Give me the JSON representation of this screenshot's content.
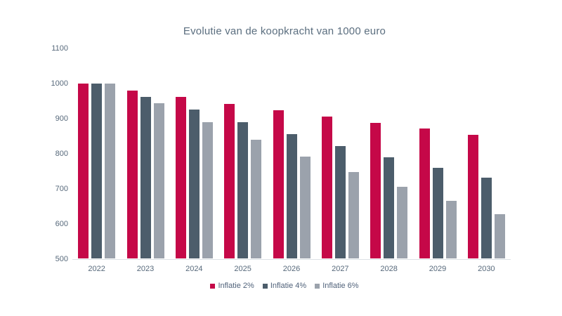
{
  "page": {
    "background_color": "#ffffff",
    "text_color": "#57697b",
    "axis_line_color": "#dce1e5"
  },
  "chart_data": {
    "type": "bar",
    "title": "Evolutie van de koopkracht van 1000 euro",
    "xlabel": "",
    "ylabel": "",
    "categories": [
      "2022",
      "2023",
      "2024",
      "2025",
      "2026",
      "2027",
      "2028",
      "2029",
      "2030"
    ],
    "series": [
      {
        "name": "Inflatie 2%",
        "color": "#c50848",
        "values": [
          1000,
          980,
          961,
          942,
          924,
          906,
          888,
          871,
          853
        ]
      },
      {
        "name": "Inflatie 4%",
        "color": "#4c5d6b",
        "values": [
          1000,
          962,
          925,
          889,
          855,
          822,
          790,
          760,
          731
        ]
      },
      {
        "name": "Inflatie 6%",
        "color": "#9ba2ac",
        "values": [
          1000,
          943,
          890,
          840,
          792,
          747,
          705,
          665,
          627
        ]
      }
    ],
    "y_axis": {
      "min": 500,
      "max": 1100,
      "step": 100,
      "ticks": [
        "500",
        "600",
        "700",
        "800",
        "900",
        "1000",
        "1100"
      ]
    },
    "grid": false,
    "legend_position": "bottom"
  }
}
